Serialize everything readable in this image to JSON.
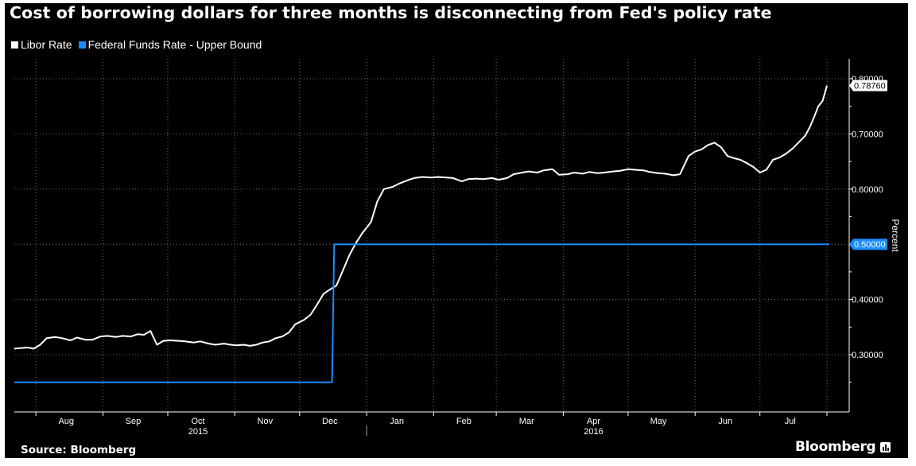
{
  "title": "Cost of borrowing dollars for three months is disconnecting from Fed's policy rate",
  "source": "Source: Bloomberg",
  "brand": "Bloomberg",
  "colors": {
    "background": "#000000",
    "libor": "#ffffff",
    "fed_funds": "#1a8cff",
    "grid": "#6e6e6e",
    "text": "#ffffff"
  },
  "chart_data": {
    "type": "line",
    "x_axis": {
      "type": "date",
      "range": [
        "2015-07-22",
        "2016-08-01"
      ],
      "month_labels": [
        {
          "date": "2015-08-15",
          "label": "Aug"
        },
        {
          "date": "2015-09-15",
          "label": "Sep"
        },
        {
          "date": "2015-10-15",
          "label": "Oct"
        },
        {
          "date": "2015-11-15",
          "label": "Nov"
        },
        {
          "date": "2015-12-15",
          "label": "Dec"
        },
        {
          "date": "2016-01-15",
          "label": "Jan"
        },
        {
          "date": "2016-02-15",
          "label": "Feb"
        },
        {
          "date": "2016-03-15",
          "label": "Mar"
        },
        {
          "date": "2016-04-15",
          "label": "Apr"
        },
        {
          "date": "2016-05-15",
          "label": "May"
        },
        {
          "date": "2016-06-15",
          "label": "Jun"
        },
        {
          "date": "2016-07-15",
          "label": "Jul"
        }
      ],
      "year_labels": [
        {
          "date": "2015-10-15",
          "label": "2015"
        },
        {
          "date": "2016-04-15",
          "label": "2016"
        }
      ],
      "year_separator": "2016-01-01"
    },
    "y_axis": {
      "label": "Percent",
      "range": [
        0.2,
        0.82
      ],
      "ticks": [
        0.3,
        0.4,
        0.5,
        0.6,
        0.7,
        0.8
      ],
      "tick_labels": [
        "0.30000",
        "0.40000",
        "0.50000",
        "0.60000",
        "0.70000",
        "0.80000"
      ]
    },
    "grid": true,
    "legend_position": "top-left",
    "series": [
      {
        "name": "Libor Rate",
        "color": "#ffffff",
        "last_value_label": "0.78760",
        "points": [
          [
            "2015-07-22",
            0.311
          ],
          [
            "2015-07-25",
            0.312
          ],
          [
            "2015-07-28",
            0.313
          ],
          [
            "2015-07-31",
            0.311
          ],
          [
            "2015-08-03",
            0.318
          ],
          [
            "2015-08-06",
            0.33
          ],
          [
            "2015-08-10",
            0.332
          ],
          [
            "2015-08-13",
            0.33
          ],
          [
            "2015-08-17",
            0.326
          ],
          [
            "2015-08-20",
            0.331
          ],
          [
            "2015-08-24",
            0.327
          ],
          [
            "2015-08-27",
            0.327
          ],
          [
            "2015-08-31",
            0.333
          ],
          [
            "2015-09-03",
            0.334
          ],
          [
            "2015-09-07",
            0.332
          ],
          [
            "2015-09-10",
            0.334
          ],
          [
            "2015-09-14",
            0.333
          ],
          [
            "2015-09-17",
            0.337
          ],
          [
            "2015-09-20",
            0.336
          ],
          [
            "2015-09-23",
            0.343
          ],
          [
            "2015-09-26",
            0.318
          ],
          [
            "2015-09-29",
            0.325
          ],
          [
            "2015-10-02",
            0.326
          ],
          [
            "2015-10-06",
            0.325
          ],
          [
            "2015-10-09",
            0.324
          ],
          [
            "2015-10-13",
            0.322
          ],
          [
            "2015-10-16",
            0.324
          ],
          [
            "2015-10-20",
            0.32
          ],
          [
            "2015-10-23",
            0.318
          ],
          [
            "2015-10-27",
            0.32
          ],
          [
            "2015-10-30",
            0.318
          ],
          [
            "2015-11-02",
            0.317
          ],
          [
            "2015-11-05",
            0.318
          ],
          [
            "2015-11-08",
            0.316
          ],
          [
            "2015-11-11",
            0.318
          ],
          [
            "2015-11-14",
            0.322
          ],
          [
            "2015-11-17",
            0.324
          ],
          [
            "2015-11-20",
            0.33
          ],
          [
            "2015-11-23",
            0.333
          ],
          [
            "2015-11-26",
            0.34
          ],
          [
            "2015-11-29",
            0.355
          ],
          [
            "2015-12-03",
            0.363
          ],
          [
            "2015-12-06",
            0.372
          ],
          [
            "2015-12-09",
            0.39
          ],
          [
            "2015-12-12",
            0.41
          ],
          [
            "2015-12-15",
            0.418
          ],
          [
            "2015-12-18",
            0.425
          ],
          [
            "2015-12-21",
            0.452
          ],
          [
            "2015-12-24",
            0.48
          ],
          [
            "2015-12-27",
            0.502
          ],
          [
            "2015-12-30",
            0.52
          ],
          [
            "2016-01-03",
            0.54
          ],
          [
            "2016-01-06",
            0.578
          ],
          [
            "2016-01-09",
            0.6
          ],
          [
            "2016-01-13",
            0.604
          ],
          [
            "2016-01-16",
            0.61
          ],
          [
            "2016-01-20",
            0.616
          ],
          [
            "2016-01-23",
            0.62
          ],
          [
            "2016-01-27",
            0.622
          ],
          [
            "2016-01-31",
            0.621
          ],
          [
            "2016-02-03",
            0.622
          ],
          [
            "2016-02-07",
            0.621
          ],
          [
            "2016-02-10",
            0.62
          ],
          [
            "2016-02-14",
            0.614
          ],
          [
            "2016-02-17",
            0.618
          ],
          [
            "2016-02-21",
            0.619
          ],
          [
            "2016-02-24",
            0.618
          ],
          [
            "2016-02-28",
            0.62
          ],
          [
            "2016-03-02",
            0.617
          ],
          [
            "2016-03-06",
            0.62
          ],
          [
            "2016-03-09",
            0.627
          ],
          [
            "2016-03-13",
            0.63
          ],
          [
            "2016-03-16",
            0.632
          ],
          [
            "2016-03-20",
            0.63
          ],
          [
            "2016-03-23",
            0.634
          ],
          [
            "2016-03-27",
            0.636
          ],
          [
            "2016-03-30",
            0.626
          ],
          [
            "2016-04-03",
            0.627
          ],
          [
            "2016-04-06",
            0.63
          ],
          [
            "2016-04-10",
            0.628
          ],
          [
            "2016-04-13",
            0.631
          ],
          [
            "2016-04-17",
            0.629
          ],
          [
            "2016-04-20",
            0.63
          ],
          [
            "2016-04-24",
            0.632
          ],
          [
            "2016-04-27",
            0.633
          ],
          [
            "2016-05-01",
            0.636
          ],
          [
            "2016-05-04",
            0.635
          ],
          [
            "2016-05-08",
            0.634
          ],
          [
            "2016-05-11",
            0.631
          ],
          [
            "2016-05-15",
            0.629
          ],
          [
            "2016-05-18",
            0.628
          ],
          [
            "2016-05-22",
            0.625
          ],
          [
            "2016-05-25",
            0.627
          ],
          [
            "2016-05-29",
            0.66
          ],
          [
            "2016-06-01",
            0.668
          ],
          [
            "2016-06-04",
            0.672
          ],
          [
            "2016-06-07",
            0.68
          ],
          [
            "2016-06-10",
            0.684
          ],
          [
            "2016-06-13",
            0.676
          ],
          [
            "2016-06-16",
            0.66
          ],
          [
            "2016-06-19",
            0.656
          ],
          [
            "2016-06-22",
            0.653
          ],
          [
            "2016-06-25",
            0.647
          ],
          [
            "2016-06-28",
            0.64
          ],
          [
            "2016-07-01",
            0.63
          ],
          [
            "2016-07-04",
            0.635
          ],
          [
            "2016-07-07",
            0.653
          ],
          [
            "2016-07-10",
            0.657
          ],
          [
            "2016-07-13",
            0.664
          ],
          [
            "2016-07-16",
            0.673
          ],
          [
            "2016-07-19",
            0.685
          ],
          [
            "2016-07-22",
            0.697
          ],
          [
            "2016-07-24",
            0.712
          ],
          [
            "2016-07-26",
            0.73
          ],
          [
            "2016-07-28",
            0.75
          ],
          [
            "2016-07-30",
            0.76
          ],
          [
            "2016-08-01",
            0.7876
          ]
        ]
      },
      {
        "name": "Federal Funds Rate - Upper Bound",
        "color": "#1a8cff",
        "last_value_label": "0.50000",
        "points": [
          [
            "2015-07-22",
            0.25
          ],
          [
            "2015-12-16",
            0.25
          ],
          [
            "2015-12-17",
            0.5
          ],
          [
            "2016-08-02",
            0.5
          ]
        ]
      }
    ]
  }
}
